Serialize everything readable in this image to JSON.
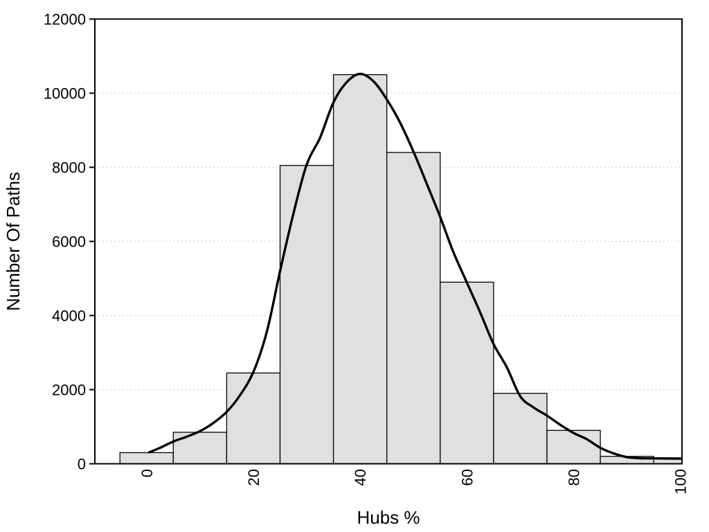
{
  "chart_data": {
    "type": "bar",
    "subtype": "histogram-with-density-curve",
    "title": "",
    "xlabel": "Hubs %",
    "ylabel": "Number Of Paths",
    "xlim": [
      -9.7,
      100.3
    ],
    "ylim": [
      0,
      12000
    ],
    "xticks": [
      0,
      20,
      40,
      60,
      80,
      100
    ],
    "yticks": [
      0,
      2000,
      4000,
      6000,
      8000,
      10000,
      12000
    ],
    "grid": "horizontal-dotted",
    "legend": "none",
    "bins": {
      "width": 10,
      "centers": [
        0,
        10,
        20,
        30,
        40,
        50,
        60,
        70,
        80,
        90,
        100
      ],
      "counts": [
        300,
        850,
        2450,
        8050,
        10500,
        8400,
        4900,
        1900,
        900,
        200,
        140
      ]
    },
    "curve": {
      "name": "density-fit",
      "points": [
        [
          0.5,
          310
        ],
        [
          2.5,
          430
        ],
        [
          5,
          600
        ],
        [
          7.5,
          730
        ],
        [
          10,
          880
        ],
        [
          12.5,
          1100
        ],
        [
          15,
          1400
        ],
        [
          17.5,
          1850
        ],
        [
          20,
          2480
        ],
        [
          22.5,
          3550
        ],
        [
          25,
          5200
        ],
        [
          27.5,
          6750
        ],
        [
          30,
          8080
        ],
        [
          32.5,
          8800
        ],
        [
          35,
          9750
        ],
        [
          37.5,
          10300
        ],
        [
          40,
          10520
        ],
        [
          42.5,
          10320
        ],
        [
          45,
          9830
        ],
        [
          47.5,
          9200
        ],
        [
          50,
          8420
        ],
        [
          52.5,
          7550
        ],
        [
          55,
          6660
        ],
        [
          57.5,
          5700
        ],
        [
          60,
          4890
        ],
        [
          62.5,
          4080
        ],
        [
          65,
          3230
        ],
        [
          67.5,
          2600
        ],
        [
          70,
          1820
        ],
        [
          72.5,
          1520
        ],
        [
          75,
          1300
        ],
        [
          77.5,
          1050
        ],
        [
          80,
          830
        ],
        [
          82.5,
          660
        ],
        [
          85,
          430
        ],
        [
          87.5,
          280
        ],
        [
          90,
          180
        ],
        [
          92.5,
          150
        ],
        [
          95,
          145
        ],
        [
          100.3,
          140
        ]
      ]
    },
    "colors": {
      "bar_fill": "#e0e0e0",
      "bar_stroke": "#000000",
      "curve": "#000000",
      "grid": "#c9c9c9",
      "background": "#ffffff",
      "text": "#000000"
    }
  }
}
